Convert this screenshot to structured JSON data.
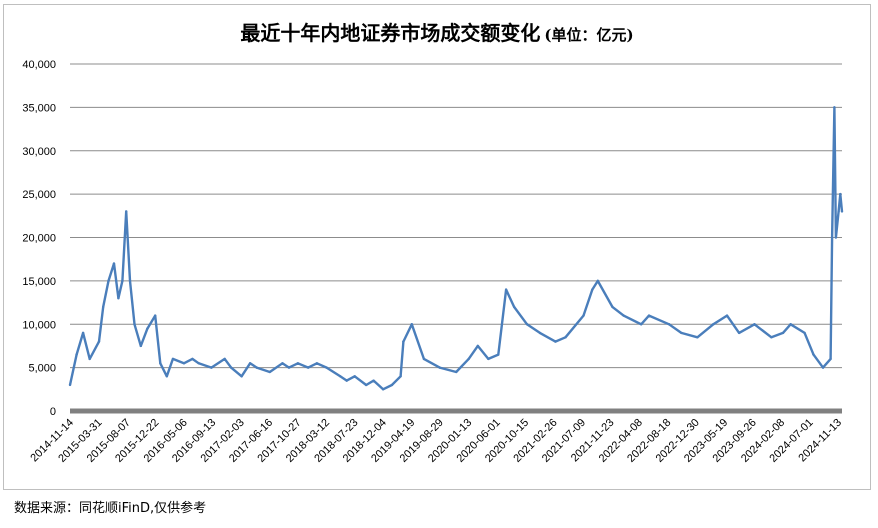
{
  "chart_data": {
    "type": "line",
    "title": "最近十年内地证券市场成交额变化",
    "title_unit": "(单位：亿元)",
    "ylim": [
      0,
      40000
    ],
    "yticks": [
      "0",
      "5,000",
      "10,000",
      "15,000",
      "20,000",
      "25,000",
      "30,000",
      "35,000",
      "40,000"
    ],
    "xticks": [
      "2014-11-14",
      "2015-03-31",
      "2015-08-07",
      "2015-12-22",
      "2016-05-06",
      "2016-09-13",
      "2017-02-03",
      "2017-06-16",
      "2017-10-27",
      "2018-03-12",
      "2018-07-23",
      "2018-12-04",
      "2019-04-19",
      "2019-08-29",
      "2020-01-13",
      "2020-06-01",
      "2020-10-15",
      "2021-02-26",
      "2021-07-09",
      "2021-11-23",
      "2022-04-08",
      "2022-08-18",
      "2022-12-30",
      "2023-05-19",
      "2023-09-26",
      "2024-02-08",
      "2024-07-01",
      "2024-11-13"
    ],
    "grid": true,
    "line_color": "#4a7ebb",
    "series": [
      {
        "x": [
          "2014-11-14",
          "2014-12-15",
          "2015-01-15",
          "2015-02-15",
          "2015-03-31",
          "2015-04-20",
          "2015-05-15",
          "2015-06-10",
          "2015-07-01",
          "2015-07-20",
          "2015-08-07",
          "2015-08-25",
          "2015-09-15",
          "2015-10-15",
          "2015-11-15",
          "2015-12-22",
          "2016-01-15",
          "2016-02-15",
          "2016-03-15",
          "2016-05-06",
          "2016-06-15",
          "2016-07-15",
          "2016-09-13",
          "2016-11-15",
          "2016-12-15",
          "2017-02-03",
          "2017-03-15",
          "2017-04-15",
          "2017-06-16",
          "2017-08-15",
          "2017-09-15",
          "2017-10-27",
          "2017-12-15",
          "2018-01-25",
          "2018-03-12",
          "2018-05-15",
          "2018-06-15",
          "2018-07-23",
          "2018-09-15",
          "2018-10-20",
          "2018-12-04",
          "2019-01-15",
          "2019-02-25",
          "2019-03-10",
          "2019-04-19",
          "2019-06-15",
          "2019-08-29",
          "2019-11-15",
          "2020-01-13",
          "2020-02-25",
          "2020-04-15",
          "2020-06-01",
          "2020-07-08",
          "2020-08-15",
          "2020-10-15",
          "2020-12-15",
          "2021-02-26",
          "2021-04-15",
          "2021-07-09",
          "2021-08-20",
          "2021-09-15",
          "2021-11-23",
          "2022-01-15",
          "2022-04-08",
          "2022-05-15",
          "2022-08-18",
          "2022-10-15",
          "2022-12-30",
          "2023-03-15",
          "2023-05-19",
          "2023-07-15",
          "2023-09-26",
          "2023-12-15",
          "2024-02-08",
          "2024-03-15",
          "2024-05-20",
          "2024-07-01",
          "2024-08-15",
          "2024-09-20",
          "2024-09-27",
          "2024-10-08",
          "2024-10-15",
          "2024-10-28",
          "2024-11-05",
          "2024-11-13"
        ],
        "values": [
          3000,
          6500,
          9000,
          6000,
          8000,
          12000,
          15000,
          17000,
          13000,
          15000,
          23000,
          15000,
          10000,
          7500,
          9500,
          11000,
          5500,
          4000,
          6000,
          5500,
          6000,
          5500,
          5000,
          6000,
          5000,
          4000,
          5500,
          5000,
          4500,
          5500,
          5000,
          5500,
          5000,
          5500,
          5000,
          4000,
          3500,
          4000,
          3000,
          3500,
          2500,
          3000,
          4000,
          8000,
          10000,
          6000,
          5000,
          4500,
          6000,
          7500,
          6000,
          6500,
          14000,
          12000,
          10000,
          9000,
          8000,
          8500,
          11000,
          14000,
          15000,
          12000,
          11000,
          10000,
          11000,
          10000,
          9000,
          8500,
          10000,
          11000,
          9000,
          10000,
          8500,
          9000,
          10000,
          9000,
          6500,
          5000,
          6000,
          20000,
          35000,
          20000,
          23000,
          25000,
          23000
        ]
      }
    ]
  },
  "source": "数据来源：同花顺iFinD,仅供参考"
}
